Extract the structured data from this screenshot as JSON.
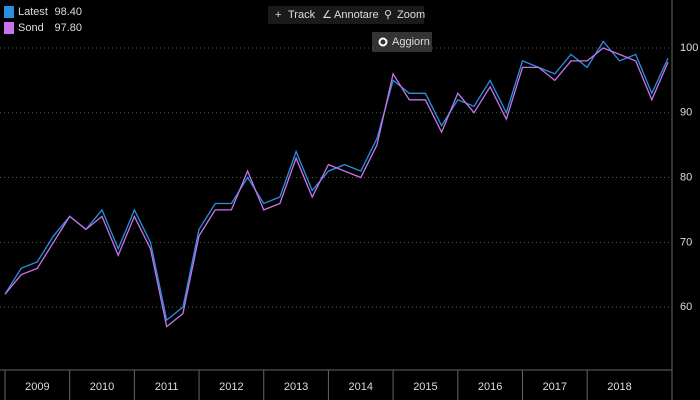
{
  "chart_data": {
    "type": "line",
    "toolbar": [
      "Track",
      "Annotare",
      "Zoom"
    ],
    "refresh_button": "Aggiorn",
    "x": [
      2009,
      2009.25,
      2009.5,
      2009.75,
      2010,
      2010.25,
      2010.5,
      2010.75,
      2011,
      2011.25,
      2011.5,
      2011.75,
      2012,
      2012.25,
      2012.5,
      2012.75,
      2013,
      2013.25,
      2013.5,
      2013.75,
      2014,
      2014.25,
      2014.5,
      2014.75,
      2015,
      2015.25,
      2015.5,
      2015.75,
      2016,
      2016.25,
      2016.5,
      2016.75,
      2017,
      2017.25,
      2017.5,
      2017.75,
      2018,
      2018.25,
      2018.5,
      2018.75,
      2019,
      2019.25
    ],
    "series": [
      {
        "name": "Latest",
        "value_label": "98.40",
        "color": "#2b8fe0",
        "values": [
          62,
          66,
          67,
          71,
          74,
          72,
          75,
          69,
          75,
          70,
          58,
          60,
          72,
          76,
          76,
          80,
          76,
          77,
          84,
          78,
          81,
          82,
          81,
          86,
          95,
          93,
          93,
          88,
          92,
          91,
          95,
          90,
          98,
          97,
          96,
          99,
          97,
          101,
          98,
          99,
          93,
          98.4
        ]
      },
      {
        "name": "Sond",
        "value_label": "97.80",
        "color": "#c873ec",
        "values": [
          62,
          65,
          66,
          70,
          74,
          72,
          74,
          68,
          74,
          69,
          57,
          59,
          71,
          75,
          75,
          81,
          75,
          76,
          83,
          77,
          82,
          81,
          80,
          85,
          96,
          92,
          92,
          87,
          93,
          90,
          94,
          89,
          97,
          97,
          95,
          98,
          98,
          100,
          99,
          98,
          92,
          97.8
        ]
      }
    ],
    "xlim": [
      2009,
      2019.25
    ],
    "xticks": [
      2009,
      2010,
      2011,
      2012,
      2013,
      2014,
      2015,
      2016,
      2017,
      2018
    ],
    "ylim": [
      50.3,
      107.4
    ],
    "yticks": [
      60,
      70,
      80,
      90,
      100
    ],
    "grid": true
  }
}
